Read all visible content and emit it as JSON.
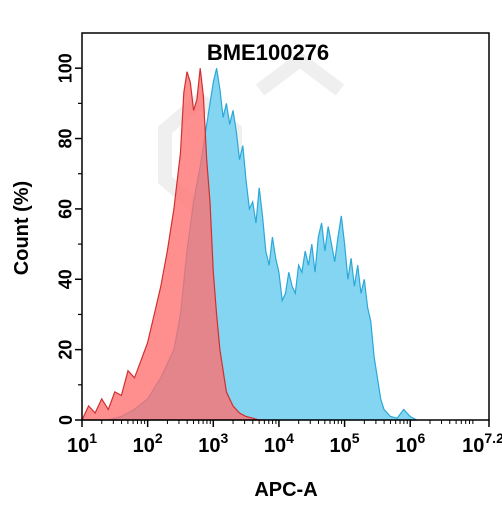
{
  "chart_data": {
    "type": "area",
    "title": "BME100276",
    "xlabel": "APC-A",
    "ylabel": "Count  (%)",
    "x_scale": "log10",
    "xlim": [
      1,
      7.2
    ],
    "ylim": [
      0,
      110
    ],
    "x_ticks": [
      {
        "base": "10",
        "exp": "1"
      },
      {
        "base": "10",
        "exp": "2"
      },
      {
        "base": "10",
        "exp": "3"
      },
      {
        "base": "10",
        "exp": "4"
      },
      {
        "base": "10",
        "exp": "5"
      },
      {
        "base": "10",
        "exp": "6"
      },
      {
        "base": "10",
        "exp": "7.2"
      }
    ],
    "y_ticks": [
      "0",
      "20",
      "40",
      "60",
      "80",
      "100"
    ],
    "grid": false,
    "colors": {
      "red_fill": "#ff6e6e",
      "red_line": "#d03030",
      "blue_fill": "#7dd3f0",
      "blue_line": "#2aa8d8",
      "overlap": "#a8607a"
    },
    "series": [
      {
        "values_x_log": [
          1.0,
          1.1,
          1.2,
          1.3,
          1.4,
          1.5,
          1.6,
          1.7,
          1.8,
          1.9,
          2.0,
          2.1,
          2.2,
          2.3,
          2.4,
          2.5,
          2.55,
          2.6,
          2.65,
          2.7,
          2.75,
          2.8,
          2.85,
          2.9,
          2.95,
          3.0,
          3.05,
          3.1,
          3.2,
          3.3,
          3.4,
          3.5,
          3.6,
          3.7,
          3.8
        ],
        "values_y": [
          0,
          4,
          2,
          6,
          3,
          8,
          7,
          14,
          12,
          17,
          22,
          30,
          38,
          48,
          60,
          76,
          93,
          99,
          96,
          88,
          91,
          100,
          92,
          74,
          62,
          42,
          30,
          20,
          8,
          4,
          2,
          1,
          0.5,
          0,
          0
        ]
      },
      {
        "values_x_log": [
          1.0,
          1.2,
          1.4,
          1.6,
          1.8,
          2.0,
          2.2,
          2.4,
          2.5,
          2.6,
          2.7,
          2.8,
          2.85,
          2.9,
          2.95,
          3.0,
          3.05,
          3.1,
          3.15,
          3.2,
          3.25,
          3.3,
          3.35,
          3.4,
          3.45,
          3.5,
          3.55,
          3.6,
          3.65,
          3.7,
          3.75,
          3.8,
          3.85,
          3.9,
          3.95,
          4.0,
          4.05,
          4.1,
          4.15,
          4.2,
          4.25,
          4.3,
          4.35,
          4.4,
          4.45,
          4.5,
          4.55,
          4.6,
          4.65,
          4.7,
          4.75,
          4.8,
          4.85,
          4.9,
          4.95,
          5.0,
          5.05,
          5.1,
          5.15,
          5.2,
          5.25,
          5.3,
          5.35,
          5.4,
          5.45,
          5.5,
          5.55,
          5.6,
          5.65,
          5.7,
          5.8,
          5.9,
          6.0,
          6.1
        ],
        "values_y": [
          0,
          0,
          0,
          1,
          3,
          6,
          12,
          20,
          30,
          48,
          62,
          72,
          78,
          84,
          90,
          96,
          100,
          94,
          86,
          90,
          84,
          88,
          82,
          74,
          78,
          68,
          60,
          62,
          56,
          66,
          58,
          48,
          44,
          52,
          46,
          42,
          34,
          36,
          42,
          38,
          36,
          44,
          42,
          48,
          44,
          50,
          42,
          52,
          56,
          48,
          55,
          50,
          45,
          52,
          58,
          50,
          40,
          46,
          38,
          44,
          36,
          40,
          32,
          28,
          18,
          12,
          6,
          3,
          2,
          1,
          0.5,
          3,
          1,
          0
        ]
      }
    ]
  }
}
